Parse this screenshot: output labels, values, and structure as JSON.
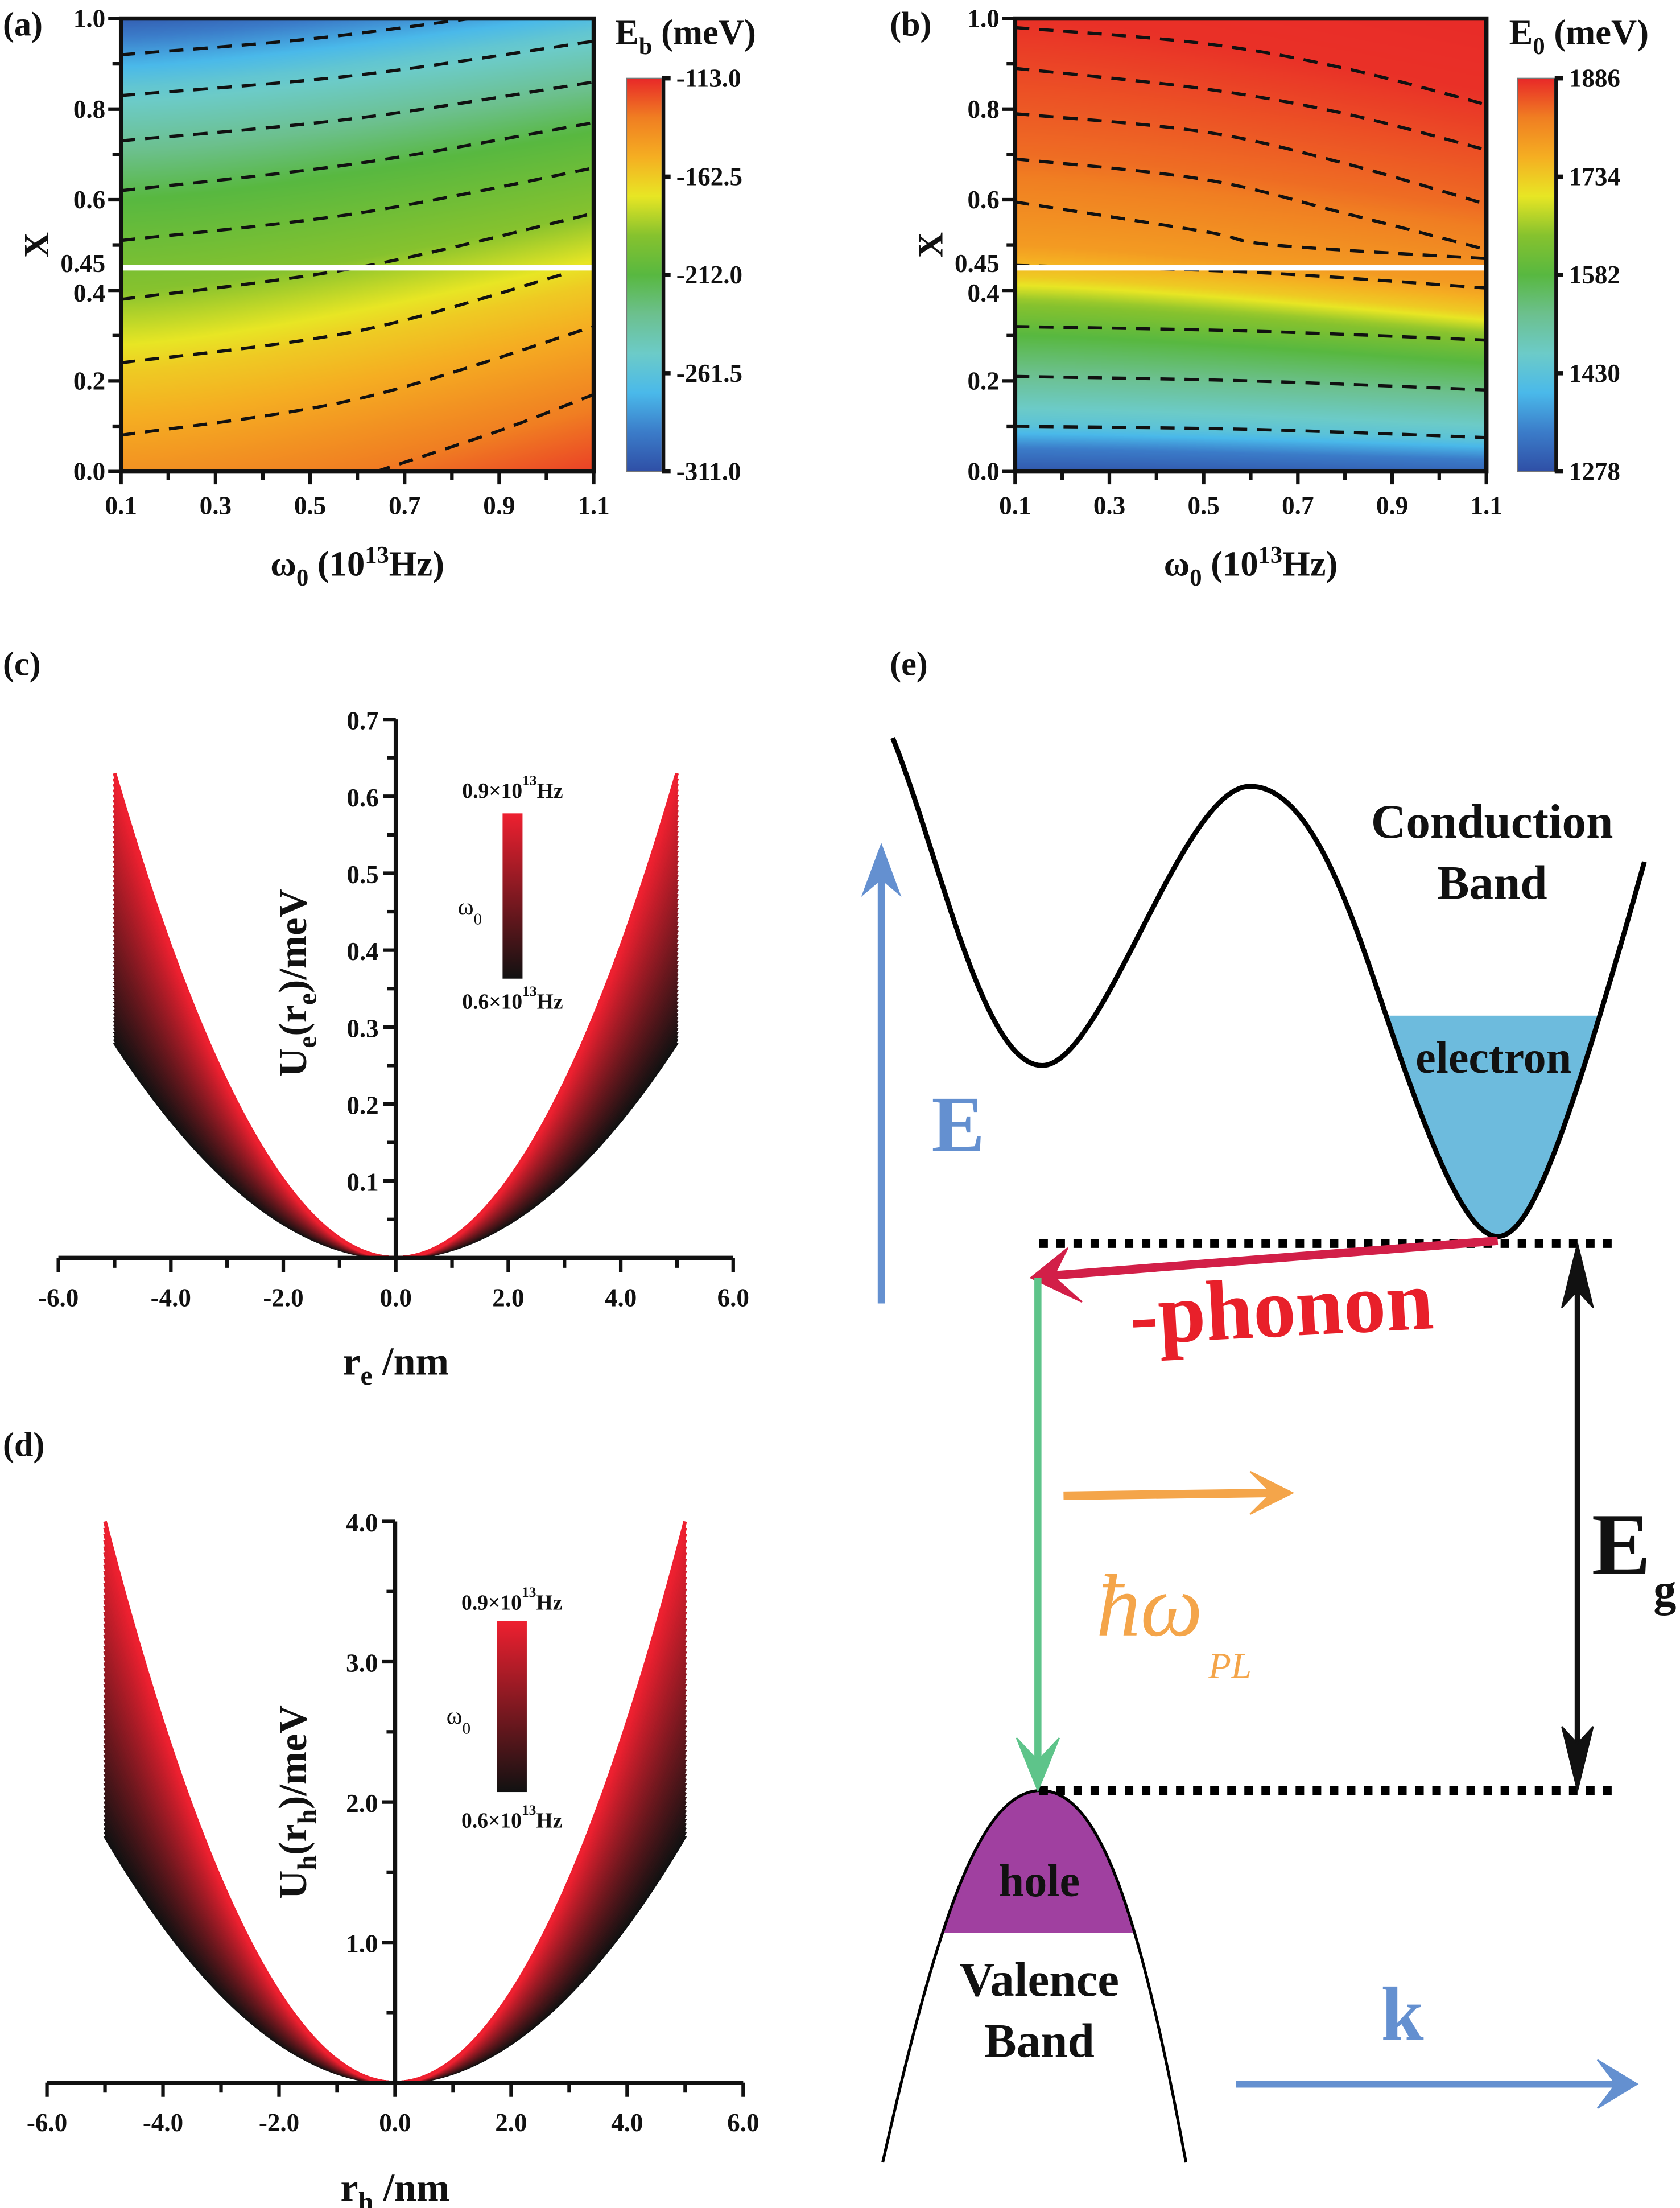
{
  "panel_labels": {
    "a": "(a)",
    "b": "(b)",
    "c": "(c)",
    "d": "(d)",
    "e": "(e)"
  },
  "chart_data": [
    {
      "panel": "a",
      "type": "heatmap",
      "xlabel": [
        {
          "text": "ω"
        },
        {
          "text": "0",
          "sub": true
        },
        {
          "text": " (10"
        },
        {
          "text": "13",
          "sup": true
        },
        {
          "text": "Hz)"
        }
      ],
      "ylabel": [
        {
          "text": "X"
        }
      ],
      "xlim": [
        0.1,
        1.1
      ],
      "ylim": [
        0.0,
        1.0
      ],
      "x_ticks": [
        "0.1",
        "0.3",
        "0.5",
        "0.7",
        "0.9",
        "1.1"
      ],
      "y_ticks": [
        "0.0",
        "0.2",
        "0.4",
        "0.45",
        "0.6",
        "0.8",
        "1.0"
      ],
      "highlight_line_x": 0.45,
      "highlight_color": "#ffffff",
      "colorbar": {
        "title": [
          {
            "text": "E"
          },
          {
            "text": "b",
            "sub": true
          },
          {
            "text": " (meV)"
          }
        ],
        "min": -311.0,
        "max": -113.0,
        "tick_labels": [
          "-113.0",
          "-162.5",
          "-212.0",
          "-261.5",
          "-311.0"
        ],
        "colormap": [
          "#2f4fa6",
          "#3b7cc9",
          "#4ab9ea",
          "#6ccbc8",
          "#6cc08e",
          "#58b840",
          "#86c22e",
          "#e8e624",
          "#f5ae22",
          "#f07e22",
          "#e82828"
        ]
      },
      "contours": [
        [
          [
            0.1,
            0.92
          ],
          [
            0.5,
            0.955
          ],
          [
            0.84,
            1.0
          ]
        ],
        [
          [
            0.1,
            0.83
          ],
          [
            0.6,
            0.875
          ],
          [
            1.1,
            0.95
          ]
        ],
        [
          [
            0.1,
            0.73
          ],
          [
            0.6,
            0.78
          ],
          [
            1.1,
            0.86
          ]
        ],
        [
          [
            0.1,
            0.62
          ],
          [
            0.6,
            0.68
          ],
          [
            1.1,
            0.77
          ]
        ],
        [
          [
            0.1,
            0.51
          ],
          [
            0.6,
            0.57
          ],
          [
            1.1,
            0.67
          ]
        ],
        [
          [
            0.1,
            0.38
          ],
          [
            0.6,
            0.45
          ],
          [
            1.1,
            0.57
          ]
        ],
        [
          [
            0.1,
            0.24
          ],
          [
            0.6,
            0.31
          ],
          [
            1.05,
            0.44
          ]
        ],
        [
          [
            0.1,
            0.08
          ],
          [
            0.6,
            0.16
          ],
          [
            1.1,
            0.32
          ]
        ],
        [
          [
            0.64,
            0.0
          ],
          [
            0.9,
            0.09
          ],
          [
            1.1,
            0.17
          ]
        ]
      ]
    },
    {
      "panel": "b",
      "type": "heatmap",
      "xlabel": [
        {
          "text": "ω"
        },
        {
          "text": "0",
          "sub": true
        },
        {
          "text": " (10"
        },
        {
          "text": "13",
          "sup": true
        },
        {
          "text": "Hz)"
        }
      ],
      "ylabel": [
        {
          "text": "X"
        }
      ],
      "xlim": [
        0.1,
        1.1
      ],
      "ylim": [
        0.0,
        1.0
      ],
      "x_ticks": [
        "0.1",
        "0.3",
        "0.5",
        "0.7",
        "0.9",
        "1.1"
      ],
      "y_ticks": [
        "0.0",
        "0.2",
        "0.4",
        "0.45",
        "0.6",
        "0.8",
        "1.0"
      ],
      "highlight_line_x": 0.45,
      "highlight_color": "#ffffff",
      "colorbar": {
        "title": [
          {
            "text": "E"
          },
          {
            "text": "0",
            "sub": true
          },
          {
            "text": " (meV)"
          }
        ],
        "min": 1278,
        "max": 1886,
        "tick_labels": [
          "1886",
          "1734",
          "1582",
          "1430",
          "1278"
        ],
        "colormap": [
          "#2f4fa6",
          "#3b7cc9",
          "#4ab9ea",
          "#6ccbc8",
          "#6cc08e",
          "#58b840",
          "#86c22e",
          "#e8e624",
          "#f5ae22",
          "#f07e22",
          "#e82828"
        ]
      },
      "contours": [
        [
          [
            0.1,
            0.98
          ],
          [
            0.5,
            0.945
          ],
          [
            0.8,
            0.89
          ],
          [
            1.1,
            0.81
          ]
        ],
        [
          [
            0.1,
            0.89
          ],
          [
            0.5,
            0.845
          ],
          [
            0.8,
            0.79
          ],
          [
            1.1,
            0.71
          ]
        ],
        [
          [
            0.1,
            0.79
          ],
          [
            0.5,
            0.75
          ],
          [
            0.8,
            0.68
          ],
          [
            1.1,
            0.59
          ]
        ],
        [
          [
            0.1,
            0.69
          ],
          [
            0.5,
            0.645
          ],
          [
            0.8,
            0.57
          ],
          [
            1.1,
            0.49
          ]
        ],
        [
          [
            0.1,
            0.595
          ],
          [
            0.5,
            0.53
          ],
          [
            0.65,
            0.5
          ],
          [
            1.1,
            0.47
          ]
        ],
        [
          [
            0.1,
            0.455
          ],
          [
            0.6,
            0.44
          ],
          [
            1.1,
            0.405
          ]
        ],
        [
          [
            0.1,
            0.32
          ],
          [
            0.6,
            0.31
          ],
          [
            1.1,
            0.29
          ]
        ],
        [
          [
            0.1,
            0.21
          ],
          [
            0.6,
            0.2
          ],
          [
            1.1,
            0.18
          ]
        ],
        [
          [
            0.1,
            0.1
          ],
          [
            0.6,
            0.093
          ],
          [
            1.1,
            0.075
          ]
        ]
      ]
    },
    {
      "panel": "c",
      "type": "line",
      "xlabel": [
        {
          "text": "r"
        },
        {
          "text": "e",
          "sub": true
        },
        {
          "text": " /nm"
        }
      ],
      "ylabel": [
        {
          "text": "U"
        },
        {
          "text": "e",
          "sub": true
        },
        {
          "text": "(r"
        },
        {
          "text": "e",
          "sub": true
        },
        {
          "text": ")/meV"
        }
      ],
      "xlim": [
        -6,
        6
      ],
      "ylim": [
        0,
        0.7
      ],
      "x_ticks": [
        "-6.0",
        "-4.0",
        "-2.0",
        "0.0",
        "2.0",
        "4.0",
        "6.0"
      ],
      "y_ticks": [
        "0.1",
        "0.2",
        "0.3",
        "0.4",
        "0.5",
        "0.6",
        "0.7"
      ],
      "omega_range": [
        0.6,
        0.9
      ],
      "series": [
        {
          "omega": 0.6,
          "color": "#111111",
          "x": [
            -5,
            -2.5,
            0,
            2.5,
            5
          ],
          "y": [
            0.28,
            0.07,
            0,
            0.07,
            0.28
          ]
        },
        {
          "omega": 0.9,
          "color": "#ee2030",
          "x": [
            -5,
            -2.5,
            0,
            2.5,
            5
          ],
          "y": [
            0.63,
            0.1575,
            0,
            0.1575,
            0.63
          ]
        }
      ],
      "colorbar": {
        "title": [
          {
            "text": "ω"
          },
          {
            "text": "0",
            "sub": true
          }
        ],
        "top_label": [
          {
            "text": "0.9×10"
          },
          {
            "text": "13",
            "sup": true
          },
          {
            "text": "Hz"
          }
        ],
        "bottom_label": [
          {
            "text": "0.6×10"
          },
          {
            "text": "13",
            "sup": true
          },
          {
            "text": "Hz"
          }
        ]
      }
    },
    {
      "panel": "d",
      "type": "line",
      "xlabel": [
        {
          "text": "r"
        },
        {
          "text": "h",
          "sub": true
        },
        {
          "text": " /nm"
        }
      ],
      "ylabel": [
        {
          "text": "U"
        },
        {
          "text": "h",
          "sub": true
        },
        {
          "text": "(r"
        },
        {
          "text": "h",
          "sub": true
        },
        {
          "text": ")/meV"
        }
      ],
      "xlim": [
        -6,
        6
      ],
      "ylim": [
        0,
        4.0
      ],
      "x_ticks": [
        "-6.0",
        "-4.0",
        "-2.0",
        "0.0",
        "2.0",
        "4.0",
        "6.0"
      ],
      "y_ticks": [
        "1.0",
        "2.0",
        "3.0",
        "4.0"
      ],
      "omega_range": [
        0.6,
        0.9
      ],
      "series": [
        {
          "omega": 0.6,
          "color": "#111111",
          "x": [
            -5,
            -2.5,
            0,
            2.5,
            5
          ],
          "y": [
            1.76,
            0.44,
            0,
            0.44,
            1.76
          ]
        },
        {
          "omega": 0.9,
          "color": "#ee2030",
          "x": [
            -5,
            -2.5,
            0,
            2.5,
            5
          ],
          "y": [
            4.0,
            1.0,
            0,
            1.0,
            4.0
          ]
        }
      ],
      "colorbar": {
        "title": [
          {
            "text": "ω"
          },
          {
            "text": "0",
            "sub": true
          }
        ],
        "top_label": [
          {
            "text": "0.9×10"
          },
          {
            "text": "13",
            "sup": true
          },
          {
            "text": "Hz"
          }
        ],
        "bottom_label": [
          {
            "text": "0.6×10"
          },
          {
            "text": "13",
            "sup": true
          },
          {
            "text": "Hz"
          }
        ]
      }
    }
  ],
  "diagram": {
    "conduction_band": [
      "Conduction",
      "Band"
    ],
    "electron": "electron",
    "energy_axis": "E",
    "phonon": "-phonon",
    "photon": {
      "main": "ħω",
      "sub": "PL"
    },
    "gap": {
      "main": "E",
      "sub": "g"
    },
    "hole": "hole",
    "valence_band": [
      "Valence",
      "Band"
    ],
    "k_axis": "k",
    "colors": {
      "axis_blue": "#6490d0",
      "electron_fill": "#6dbbdd",
      "phonon_red": "#d21f48",
      "phonon_text": "#e8202a",
      "emission_green": "#5ec48a",
      "photon_orange": "#f4a54a",
      "hole_fill": "#a040a0"
    }
  }
}
